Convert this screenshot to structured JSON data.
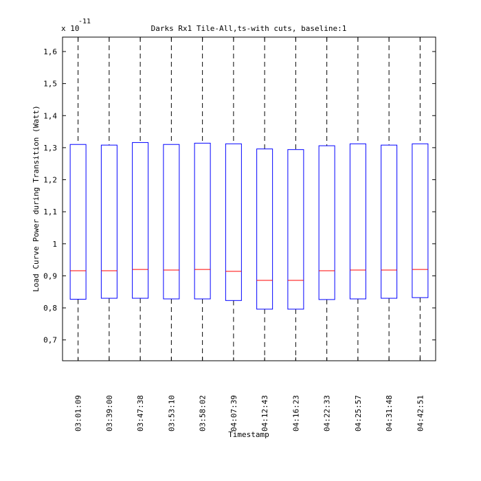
{
  "chart_data": {
    "type": "boxplot",
    "title": "Darks Rx1 Tile-All,ts-with cuts, baseline:1",
    "xlabel": "Timestamp",
    "ylabel": "Load Curve Power during Transition (Watt)",
    "y_exponent_base": "x 10",
    "y_exponent": "-11",
    "ylim": [
      0.635,
      1.645
    ],
    "yticks": [
      0.7,
      0.8,
      0.9,
      1,
      1.1,
      1.2,
      1.3,
      1.4,
      1.5,
      1.6
    ],
    "ytick_labels": [
      "0,7",
      "0,8",
      "0,9",
      "1",
      "1,1",
      "1,2",
      "1,3",
      "1,4",
      "1,5",
      "1,6"
    ],
    "whisker_range": [
      0.635,
      1.645
    ],
    "categories": [
      "03:01:09",
      "03:39:00",
      "03:47:38",
      "03:53:10",
      "03:58:02",
      "04:07:39",
      "04:12:43",
      "04:16:23",
      "04:22:33",
      "04:25:57",
      "04:31:48",
      "04:42:51"
    ],
    "q1": [
      0.827,
      0.83,
      0.83,
      0.828,
      0.828,
      0.823,
      0.796,
      0.796,
      0.826,
      0.828,
      0.83,
      0.832
    ],
    "median": [
      0.916,
      0.916,
      0.92,
      0.918,
      0.92,
      0.914,
      0.886,
      0.886,
      0.916,
      0.918,
      0.918,
      0.92
    ],
    "q3": [
      1.31,
      1.308,
      1.316,
      1.31,
      1.314,
      1.312,
      1.296,
      1.294,
      1.306,
      1.312,
      1.308,
      1.312
    ],
    "colors": {
      "box": "#0000ff",
      "median": "#ff0000",
      "whisker": "#000000"
    }
  }
}
